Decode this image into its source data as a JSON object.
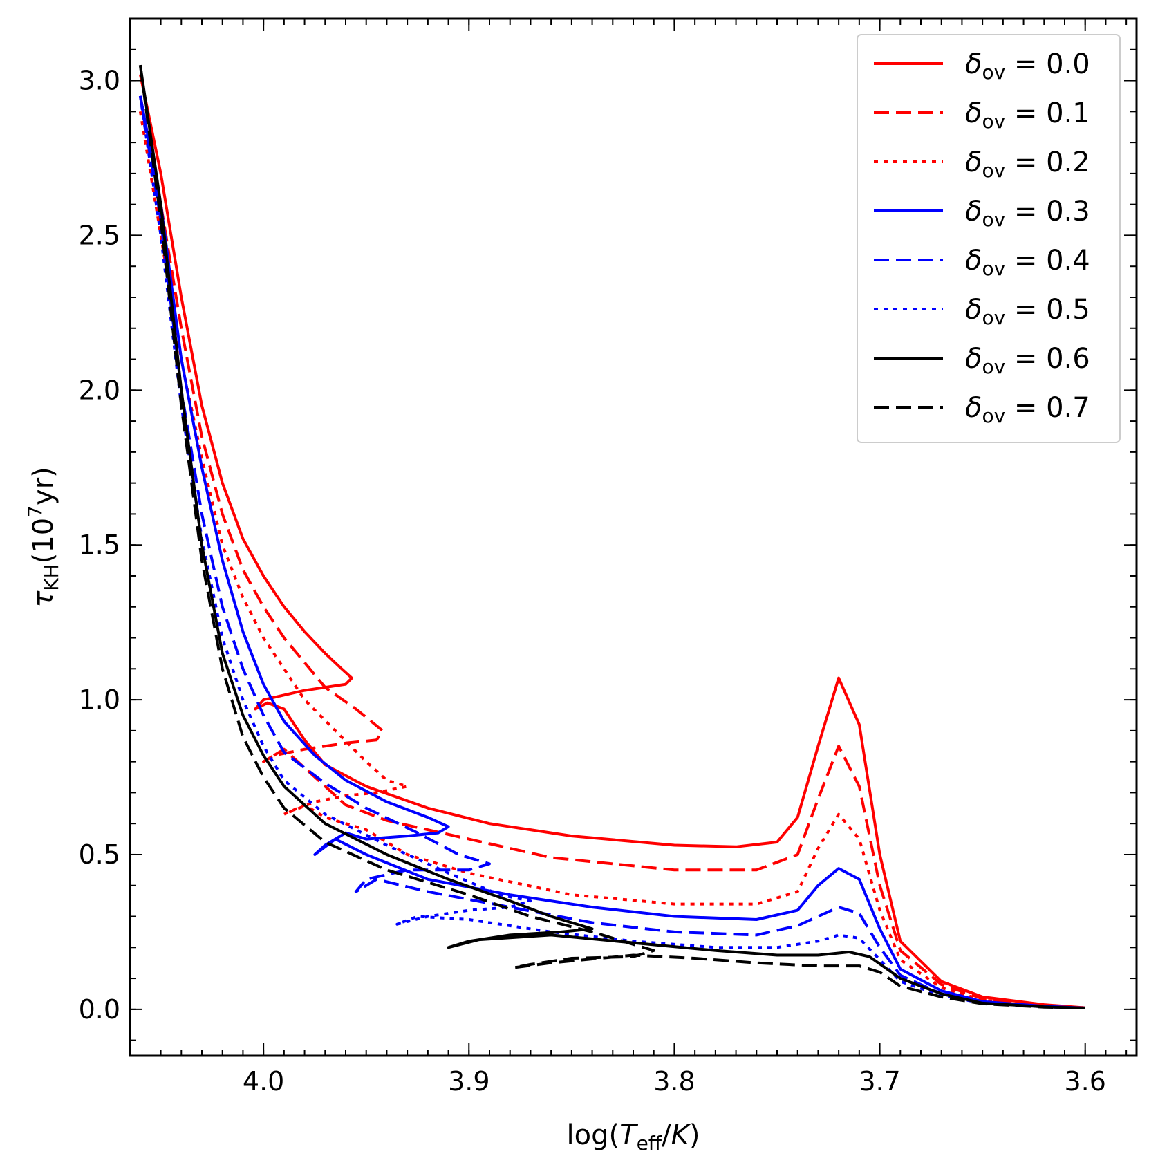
{
  "chart_data": {
    "type": "line",
    "title": "",
    "xlabel": "log(T_eff/K)",
    "xlabel_parts": {
      "prefix": "log(",
      "var": "T",
      "sub": "eff",
      "mid": "/",
      "unit": "K",
      "suffix": ")"
    },
    "ylabel_parts": {
      "symbol": "τ",
      "sub": "KH",
      "open": "(10",
      "sup": "7",
      "close": "yr)"
    },
    "xlim": [
      4.065,
      3.575
    ],
    "ylim": [
      -0.15,
      3.2
    ],
    "x_ticks": [
      "4.0",
      "3.9",
      "3.8",
      "3.7",
      "3.6"
    ],
    "x_tick_values": [
      4.0,
      3.9,
      3.8,
      3.7,
      3.6
    ],
    "y_ticks": [
      "0.0",
      "0.5",
      "1.0",
      "1.5",
      "2.0",
      "2.5",
      "3.0"
    ],
    "y_tick_values": [
      0.0,
      0.5,
      1.0,
      1.5,
      2.0,
      2.5,
      3.0
    ],
    "legend_position": "top-right",
    "legend_symbol": "δ",
    "legend_sub": "ov",
    "series": [
      {
        "name": "δov = 0.0",
        "value": "0.0",
        "color": "#ff0000",
        "dash": "solid",
        "points": [
          [
            4.06,
            3.02
          ],
          [
            4.05,
            2.7
          ],
          [
            4.04,
            2.3
          ],
          [
            4.03,
            1.95
          ],
          [
            4.02,
            1.7
          ],
          [
            4.01,
            1.52
          ],
          [
            4.0,
            1.4
          ],
          [
            3.99,
            1.3
          ],
          [
            3.98,
            1.22
          ],
          [
            3.97,
            1.15
          ],
          [
            3.962,
            1.1
          ],
          [
            3.957,
            1.07
          ],
          [
            3.96,
            1.05
          ],
          [
            3.98,
            1.03
          ],
          [
            4.0,
            1.0
          ],
          [
            4.004,
            0.97
          ],
          [
            3.998,
            0.99
          ],
          [
            3.99,
            0.97
          ],
          [
            3.98,
            0.87
          ],
          [
            3.97,
            0.79
          ],
          [
            3.95,
            0.72
          ],
          [
            3.92,
            0.65
          ],
          [
            3.89,
            0.6
          ],
          [
            3.85,
            0.56
          ],
          [
            3.8,
            0.53
          ],
          [
            3.77,
            0.525
          ],
          [
            3.75,
            0.54
          ],
          [
            3.74,
            0.62
          ],
          [
            3.73,
            0.85
          ],
          [
            3.72,
            1.07
          ],
          [
            3.71,
            0.92
          ],
          [
            3.7,
            0.5
          ],
          [
            3.69,
            0.22
          ],
          [
            3.67,
            0.09
          ],
          [
            3.65,
            0.04
          ],
          [
            3.62,
            0.015
          ],
          [
            3.6,
            0.005
          ]
        ]
      },
      {
        "name": "δov = 0.1",
        "value": "0.1",
        "color": "#ff0000",
        "dash": "dashed",
        "points": [
          [
            4.06,
            2.95
          ],
          [
            4.05,
            2.6
          ],
          [
            4.04,
            2.2
          ],
          [
            4.03,
            1.85
          ],
          [
            4.02,
            1.6
          ],
          [
            4.01,
            1.42
          ],
          [
            4.0,
            1.3
          ],
          [
            3.99,
            1.2
          ],
          [
            3.98,
            1.12
          ],
          [
            3.97,
            1.04
          ],
          [
            3.955,
            0.97
          ],
          [
            3.942,
            0.9
          ],
          [
            3.945,
            0.87
          ],
          [
            3.96,
            0.86
          ],
          [
            3.98,
            0.84
          ],
          [
            3.995,
            0.82
          ],
          [
            4.0,
            0.8
          ],
          [
            3.99,
            0.84
          ],
          [
            3.97,
            0.72
          ],
          [
            3.96,
            0.66
          ],
          [
            3.94,
            0.61
          ],
          [
            3.9,
            0.55
          ],
          [
            3.86,
            0.49
          ],
          [
            3.8,
            0.45
          ],
          [
            3.76,
            0.45
          ],
          [
            3.74,
            0.5
          ],
          [
            3.73,
            0.68
          ],
          [
            3.72,
            0.85
          ],
          [
            3.71,
            0.72
          ],
          [
            3.7,
            0.4
          ],
          [
            3.69,
            0.19
          ],
          [
            3.67,
            0.08
          ],
          [
            3.65,
            0.035
          ],
          [
            3.62,
            0.013
          ],
          [
            3.6,
            0.005
          ]
        ]
      },
      {
        "name": "δov = 0.2",
        "value": "0.2",
        "color": "#ff0000",
        "dash": "dotted",
        "points": [
          [
            4.06,
            2.9
          ],
          [
            4.05,
            2.5
          ],
          [
            4.04,
            2.1
          ],
          [
            4.03,
            1.78
          ],
          [
            4.02,
            1.5
          ],
          [
            4.01,
            1.33
          ],
          [
            4.0,
            1.2
          ],
          [
            3.99,
            1.1
          ],
          [
            3.98,
            1.0
          ],
          [
            3.965,
            0.9
          ],
          [
            3.95,
            0.8
          ],
          [
            3.94,
            0.74
          ],
          [
            3.93,
            0.72
          ],
          [
            3.945,
            0.7
          ],
          [
            3.96,
            0.69
          ],
          [
            3.975,
            0.67
          ],
          [
            3.99,
            0.63
          ],
          [
            3.98,
            0.66
          ],
          [
            3.97,
            0.62
          ],
          [
            3.95,
            0.58
          ],
          [
            3.93,
            0.5
          ],
          [
            3.9,
            0.44
          ],
          [
            3.85,
            0.37
          ],
          [
            3.8,
            0.34
          ],
          [
            3.76,
            0.34
          ],
          [
            3.74,
            0.38
          ],
          [
            3.73,
            0.52
          ],
          [
            3.72,
            0.63
          ],
          [
            3.71,
            0.55
          ],
          [
            3.7,
            0.32
          ],
          [
            3.69,
            0.16
          ],
          [
            3.67,
            0.07
          ],
          [
            3.65,
            0.03
          ],
          [
            3.62,
            0.012
          ],
          [
            3.6,
            0.005
          ]
        ]
      },
      {
        "name": "δov = 0.3",
        "value": "0.3",
        "color": "#0000ff",
        "dash": "solid",
        "points": [
          [
            4.06,
            2.95
          ],
          [
            4.05,
            2.6
          ],
          [
            4.04,
            2.1
          ],
          [
            4.03,
            1.75
          ],
          [
            4.02,
            1.45
          ],
          [
            4.01,
            1.22
          ],
          [
            4.0,
            1.05
          ],
          [
            3.99,
            0.93
          ],
          [
            3.975,
            0.82
          ],
          [
            3.96,
            0.74
          ],
          [
            3.94,
            0.67
          ],
          [
            3.92,
            0.62
          ],
          [
            3.91,
            0.59
          ],
          [
            3.915,
            0.57
          ],
          [
            3.93,
            0.56
          ],
          [
            3.95,
            0.55
          ],
          [
            3.96,
            0.57
          ],
          [
            3.97,
            0.53
          ],
          [
            3.975,
            0.5
          ],
          [
            3.965,
            0.55
          ],
          [
            3.95,
            0.5
          ],
          [
            3.92,
            0.42
          ],
          [
            3.88,
            0.37
          ],
          [
            3.84,
            0.33
          ],
          [
            3.8,
            0.3
          ],
          [
            3.76,
            0.29
          ],
          [
            3.74,
            0.32
          ],
          [
            3.73,
            0.4
          ],
          [
            3.72,
            0.455
          ],
          [
            3.71,
            0.42
          ],
          [
            3.7,
            0.26
          ],
          [
            3.69,
            0.13
          ],
          [
            3.67,
            0.06
          ],
          [
            3.65,
            0.025
          ],
          [
            3.62,
            0.01
          ],
          [
            3.6,
            0.004
          ]
        ]
      },
      {
        "name": "δov = 0.4",
        "value": "0.4",
        "color": "#0000ff",
        "dash": "dashed",
        "points": [
          [
            4.06,
            2.95
          ],
          [
            4.05,
            2.55
          ],
          [
            4.04,
            2.0
          ],
          [
            4.03,
            1.6
          ],
          [
            4.02,
            1.3
          ],
          [
            4.01,
            1.1
          ],
          [
            4.0,
            0.95
          ],
          [
            3.99,
            0.83
          ],
          [
            3.97,
            0.73
          ],
          [
            3.95,
            0.65
          ],
          [
            3.925,
            0.57
          ],
          [
            3.905,
            0.5
          ],
          [
            3.89,
            0.47
          ],
          [
            3.9,
            0.45
          ],
          [
            3.93,
            0.45
          ],
          [
            3.95,
            0.42
          ],
          [
            3.955,
            0.38
          ],
          [
            3.945,
            0.42
          ],
          [
            3.92,
            0.38
          ],
          [
            3.88,
            0.33
          ],
          [
            3.84,
            0.28
          ],
          [
            3.8,
            0.25
          ],
          [
            3.76,
            0.24
          ],
          [
            3.74,
            0.27
          ],
          [
            3.73,
            0.3
          ],
          [
            3.72,
            0.33
          ],
          [
            3.71,
            0.31
          ],
          [
            3.7,
            0.2
          ],
          [
            3.69,
            0.11
          ],
          [
            3.67,
            0.05
          ],
          [
            3.65,
            0.022
          ],
          [
            3.62,
            0.009
          ],
          [
            3.6,
            0.004
          ]
        ]
      },
      {
        "name": "δov = 0.5",
        "value": "0.5",
        "color": "#0000ff",
        "dash": "dotted",
        "points": [
          [
            4.06,
            2.95
          ],
          [
            4.05,
            2.5
          ],
          [
            4.04,
            1.95
          ],
          [
            4.03,
            1.52
          ],
          [
            4.02,
            1.2
          ],
          [
            4.01,
            1.0
          ],
          [
            4.0,
            0.85
          ],
          [
            3.99,
            0.74
          ],
          [
            3.97,
            0.63
          ],
          [
            3.94,
            0.53
          ],
          [
            3.91,
            0.44
          ],
          [
            3.885,
            0.37
          ],
          [
            3.87,
            0.35
          ],
          [
            3.88,
            0.33
          ],
          [
            3.9,
            0.32
          ],
          [
            3.92,
            0.3
          ],
          [
            3.935,
            0.275
          ],
          [
            3.925,
            0.3
          ],
          [
            3.9,
            0.29
          ],
          [
            3.86,
            0.25
          ],
          [
            3.82,
            0.22
          ],
          [
            3.78,
            0.2
          ],
          [
            3.75,
            0.2
          ],
          [
            3.73,
            0.22
          ],
          [
            3.72,
            0.24
          ],
          [
            3.71,
            0.23
          ],
          [
            3.7,
            0.16
          ],
          [
            3.69,
            0.09
          ],
          [
            3.67,
            0.045
          ],
          [
            3.65,
            0.02
          ],
          [
            3.62,
            0.008
          ],
          [
            3.6,
            0.004
          ]
        ]
      },
      {
        "name": "δov = 0.6",
        "value": "0.6",
        "color": "#000000",
        "dash": "solid",
        "points": [
          [
            4.06,
            3.05
          ],
          [
            4.05,
            2.6
          ],
          [
            4.04,
            2.0
          ],
          [
            4.03,
            1.5
          ],
          [
            4.02,
            1.15
          ],
          [
            4.01,
            0.95
          ],
          [
            4.0,
            0.82
          ],
          [
            3.99,
            0.72
          ],
          [
            3.97,
            0.6
          ],
          [
            3.94,
            0.5
          ],
          [
            3.91,
            0.42
          ],
          [
            3.88,
            0.35
          ],
          [
            3.86,
            0.3
          ],
          [
            3.84,
            0.26
          ],
          [
            3.855,
            0.25
          ],
          [
            3.88,
            0.24
          ],
          [
            3.9,
            0.22
          ],
          [
            3.91,
            0.2
          ],
          [
            3.895,
            0.225
          ],
          [
            3.86,
            0.24
          ],
          [
            3.82,
            0.215
          ],
          [
            3.78,
            0.19
          ],
          [
            3.75,
            0.175
          ],
          [
            3.73,
            0.175
          ],
          [
            3.715,
            0.185
          ],
          [
            3.705,
            0.17
          ],
          [
            3.69,
            0.1
          ],
          [
            3.67,
            0.05
          ],
          [
            3.65,
            0.02
          ],
          [
            3.62,
            0.008
          ],
          [
            3.6,
            0.004
          ]
        ]
      },
      {
        "name": "δov = 0.7",
        "value": "0.7",
        "color": "#000000",
        "dash": "dashed",
        "points": [
          [
            4.06,
            3.05
          ],
          [
            4.05,
            2.55
          ],
          [
            4.04,
            1.95
          ],
          [
            4.03,
            1.45
          ],
          [
            4.02,
            1.1
          ],
          [
            4.01,
            0.88
          ],
          [
            4.0,
            0.75
          ],
          [
            3.99,
            0.65
          ],
          [
            3.97,
            0.54
          ],
          [
            3.94,
            0.45
          ],
          [
            3.9,
            0.37
          ],
          [
            3.87,
            0.3
          ],
          [
            3.84,
            0.25
          ],
          [
            3.81,
            0.19
          ],
          [
            3.82,
            0.17
          ],
          [
            3.85,
            0.165
          ],
          [
            3.87,
            0.145
          ],
          [
            3.878,
            0.135
          ],
          [
            3.86,
            0.15
          ],
          [
            3.82,
            0.175
          ],
          [
            3.79,
            0.165
          ],
          [
            3.76,
            0.15
          ],
          [
            3.73,
            0.14
          ],
          [
            3.71,
            0.14
          ],
          [
            3.7,
            0.12
          ],
          [
            3.69,
            0.075
          ],
          [
            3.67,
            0.04
          ],
          [
            3.65,
            0.018
          ],
          [
            3.62,
            0.007
          ],
          [
            3.6,
            0.004
          ]
        ]
      }
    ]
  }
}
